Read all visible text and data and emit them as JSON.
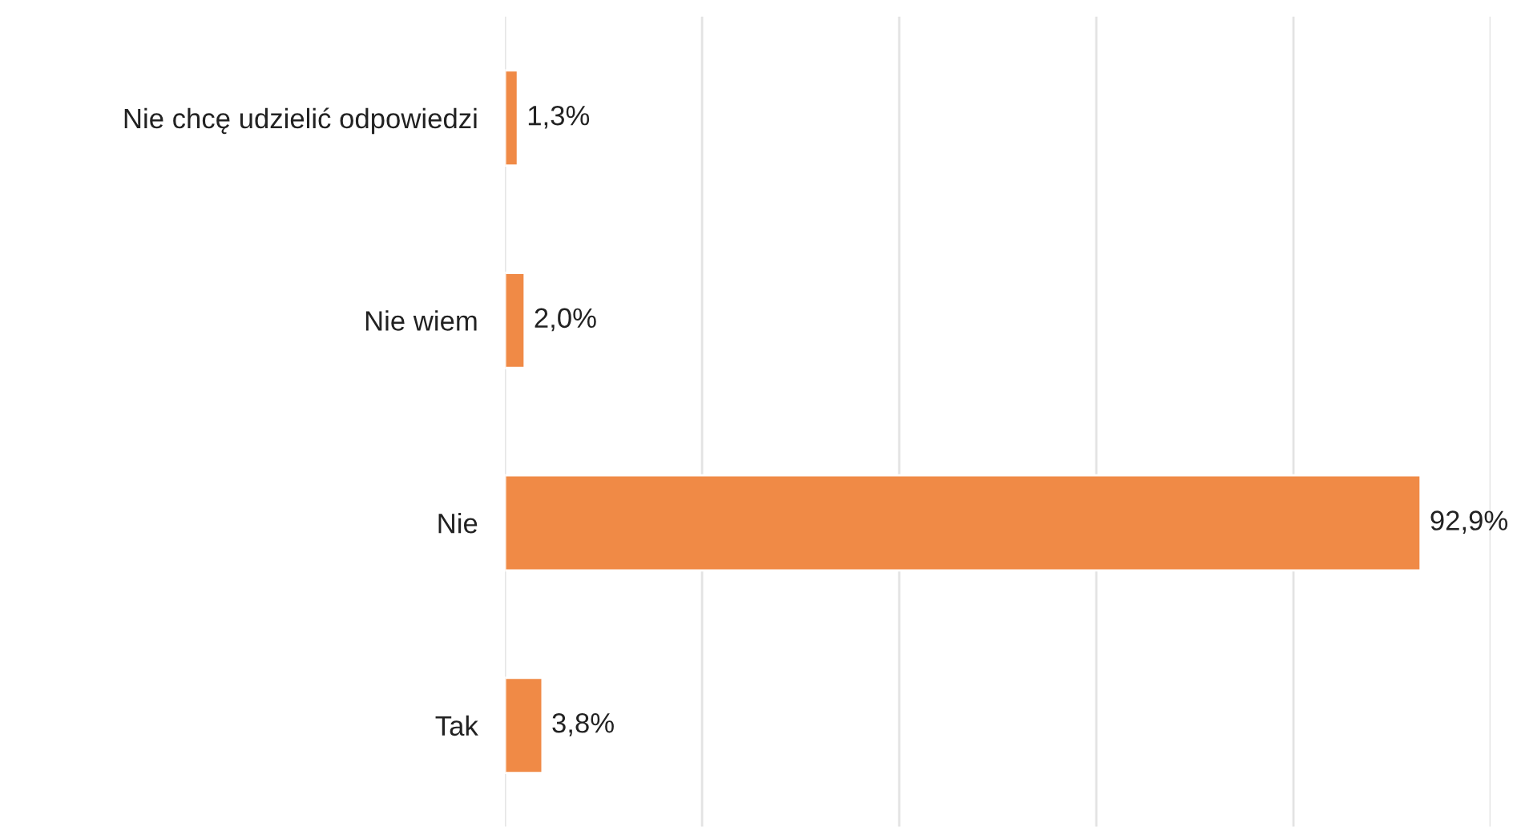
{
  "chart_data": {
    "type": "bar",
    "orientation": "horizontal",
    "categories": [
      "Nie chcę udzielić odpowiedzi",
      "Nie wiem",
      "Nie",
      "Tak"
    ],
    "values": [
      1.3,
      2.0,
      92.9,
      3.8
    ],
    "value_labels": [
      "1,3%",
      "2,0%",
      "92,9%",
      "3,8%"
    ],
    "color": "#f08a46",
    "xlim": [
      0,
      100
    ],
    "xticks": [
      {
        "value": 0,
        "label": null
      },
      {
        "value": 20,
        "label": null
      },
      {
        "value": 40,
        "label": null
      },
      {
        "value": 60,
        "label": null
      },
      {
        "value": 80,
        "label": null
      },
      {
        "value": 100,
        "label": null
      }
    ],
    "tick_labels": "y",
    "grid": "x",
    "legend": false
  }
}
